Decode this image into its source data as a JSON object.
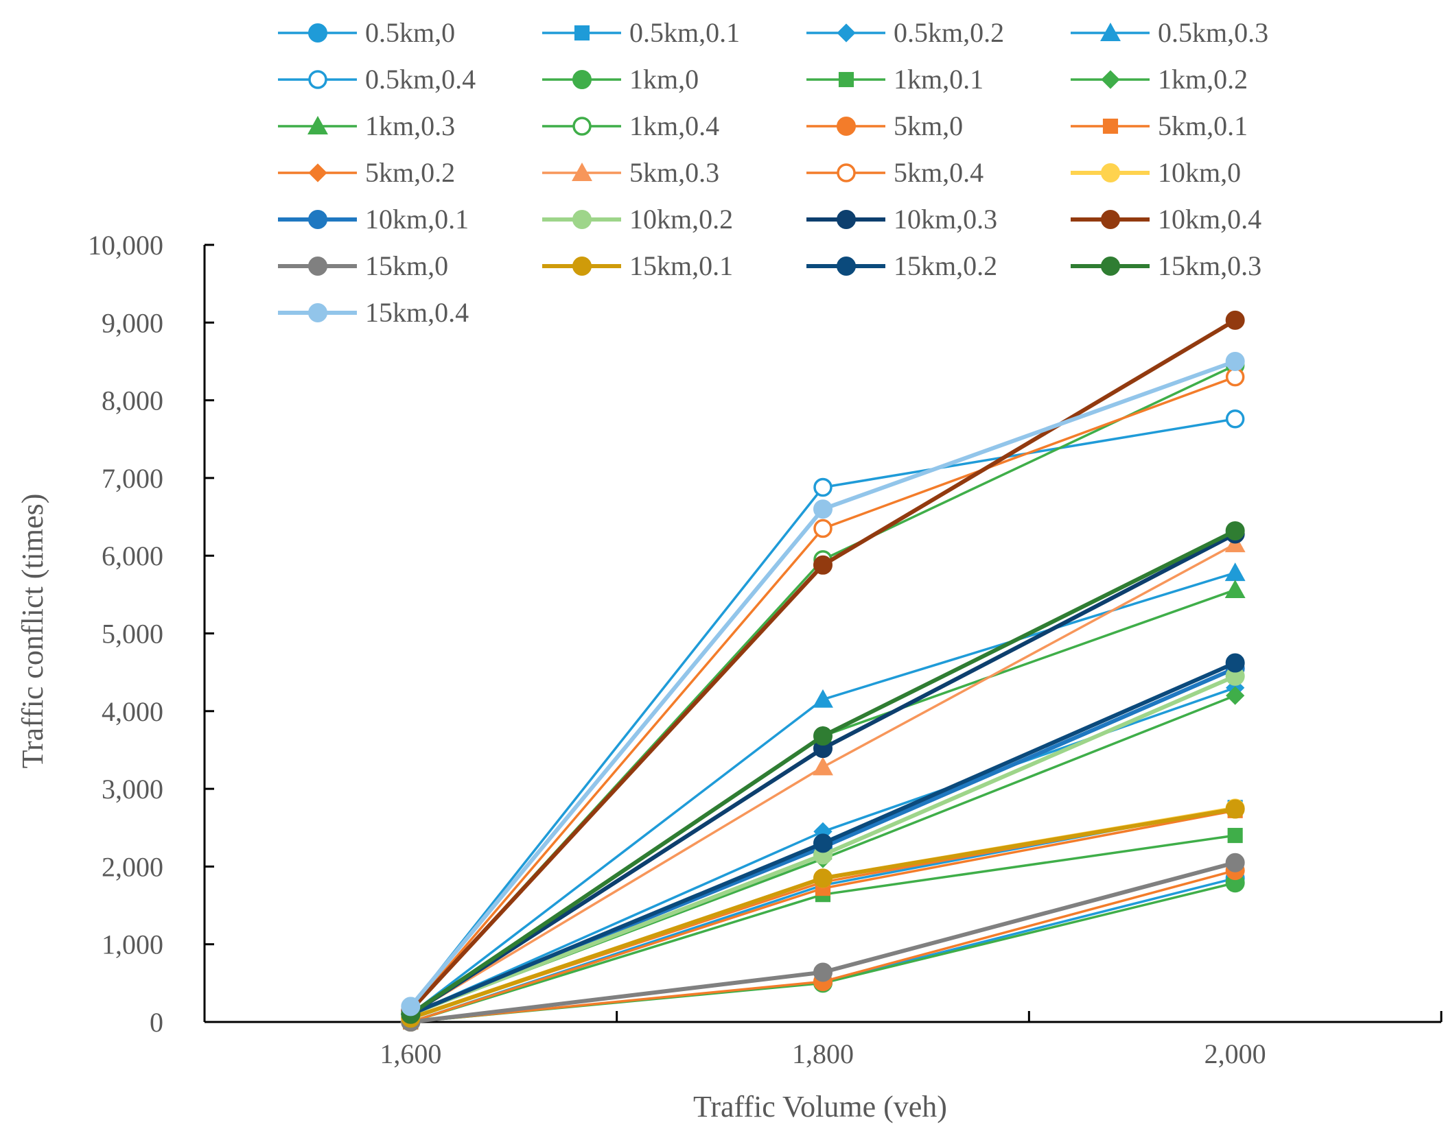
{
  "chart_data": {
    "type": "line",
    "title": "",
    "xlabel": "Traffic Volume (veh)",
    "ylabel": "Traffic conflict (times)",
    "x": [
      1600,
      1800,
      2000
    ],
    "x_tick_labels": [
      "1,600",
      "1,800",
      "2,000"
    ],
    "xlim": [
      1500,
      2100
    ],
    "ylim": [
      0,
      10000
    ],
    "y_tick_labels": [
      "0",
      "1,000",
      "2,000",
      "3,000",
      "4,000",
      "5,000",
      "6,000",
      "7,000",
      "8,000",
      "9,000",
      "10,000"
    ],
    "legend_position": "top",
    "series": [
      {
        "name": "0.5km,0",
        "values": [
          0,
          510,
          1850
        ],
        "color": "#1f9bd8",
        "marker": "circle",
        "width": "thin"
      },
      {
        "name": "0.5km,0.1",
        "values": [
          0,
          1760,
          2760
        ],
        "color": "#1f9bd8",
        "marker": "square",
        "width": "thin"
      },
      {
        "name": "0.5km,0.2",
        "values": [
          100,
          2450,
          4300
        ],
        "color": "#1f9bd8",
        "marker": "diamond",
        "width": "thin"
      },
      {
        "name": "0.5km,0.3",
        "values": [
          100,
          4150,
          5780
        ],
        "color": "#1f9bd8",
        "marker": "triangle",
        "width": "thin"
      },
      {
        "name": "0.5km,0.4",
        "values": [
          200,
          6880,
          7760
        ],
        "color": "#1f9bd8",
        "marker": "open-circle",
        "width": "thin"
      },
      {
        "name": "1km,0",
        "values": [
          0,
          500,
          1790
        ],
        "color": "#3fae49",
        "marker": "circle",
        "width": "thin"
      },
      {
        "name": "1km,0.1",
        "values": [
          0,
          1640,
          2400
        ],
        "color": "#3fae49",
        "marker": "square",
        "width": "thin"
      },
      {
        "name": "1km,0.2",
        "values": [
          100,
          2100,
          4200
        ],
        "color": "#3fae49",
        "marker": "diamond",
        "width": "thin"
      },
      {
        "name": "1km,0.3",
        "values": [
          100,
          3680,
          5560
        ],
        "color": "#3fae49",
        "marker": "triangle",
        "width": "thin"
      },
      {
        "name": "1km,0.4",
        "values": [
          150,
          5950,
          8450
        ],
        "color": "#3fae49",
        "marker": "open-circle",
        "width": "thin"
      },
      {
        "name": "5km,0",
        "values": [
          0,
          520,
          1950
        ],
        "color": "#f37c2a",
        "marker": "circle",
        "width": "thin"
      },
      {
        "name": "5km,0.1",
        "values": [
          0,
          1720,
          2720
        ],
        "color": "#f37c2a",
        "marker": "square",
        "width": "thin"
      },
      {
        "name": "5km,0.2",
        "values": [
          50,
          1800,
          2750
        ],
        "color": "#f37c2a",
        "marker": "diamond",
        "width": "thin"
      },
      {
        "name": "5km,0.3",
        "values": [
          100,
          3280,
          6150
        ],
        "color": "#f7965a",
        "marker": "triangle",
        "width": "thin"
      },
      {
        "name": "5km,0.4",
        "values": [
          150,
          6350,
          8300
        ],
        "color": "#f37c2a",
        "marker": "open-circle",
        "width": "thin"
      },
      {
        "name": "10km,0",
        "values": [
          50,
          1850,
          2750
        ],
        "color": "#ffd34e",
        "marker": "circle",
        "width": "thick"
      },
      {
        "name": "10km,0.1",
        "values": [
          100,
          2250,
          4550
        ],
        "color": "#1f78c1",
        "marker": "circle",
        "width": "thick"
      },
      {
        "name": "10km,0.2",
        "values": [
          100,
          2150,
          4450
        ],
        "color": "#9ed58a",
        "marker": "circle",
        "width": "thick"
      },
      {
        "name": "10km,0.3",
        "values": [
          100,
          3520,
          6280
        ],
        "color": "#0d3f6e",
        "marker": "circle",
        "width": "thick"
      },
      {
        "name": "10km,0.4",
        "values": [
          150,
          5880,
          9030
        ],
        "color": "#923a0f",
        "marker": "circle",
        "width": "thick"
      },
      {
        "name": "15km,0",
        "values": [
          0,
          640,
          2050
        ],
        "color": "#808080",
        "marker": "circle",
        "width": "thick"
      },
      {
        "name": "15km,0.1",
        "values": [
          50,
          1850,
          2740
        ],
        "color": "#cf9b0a",
        "marker": "circle",
        "width": "thick"
      },
      {
        "name": "15km,0.2",
        "values": [
          100,
          2300,
          4620
        ],
        "color": "#0b4a7c",
        "marker": "circle",
        "width": "thick"
      },
      {
        "name": "15km,0.3",
        "values": [
          100,
          3680,
          6320
        ],
        "color": "#2f7d32",
        "marker": "circle",
        "width": "thick"
      },
      {
        "name": "15km,0.4",
        "values": [
          200,
          6600,
          8500
        ],
        "color": "#92c5ea",
        "marker": "circle",
        "width": "thick"
      }
    ]
  }
}
